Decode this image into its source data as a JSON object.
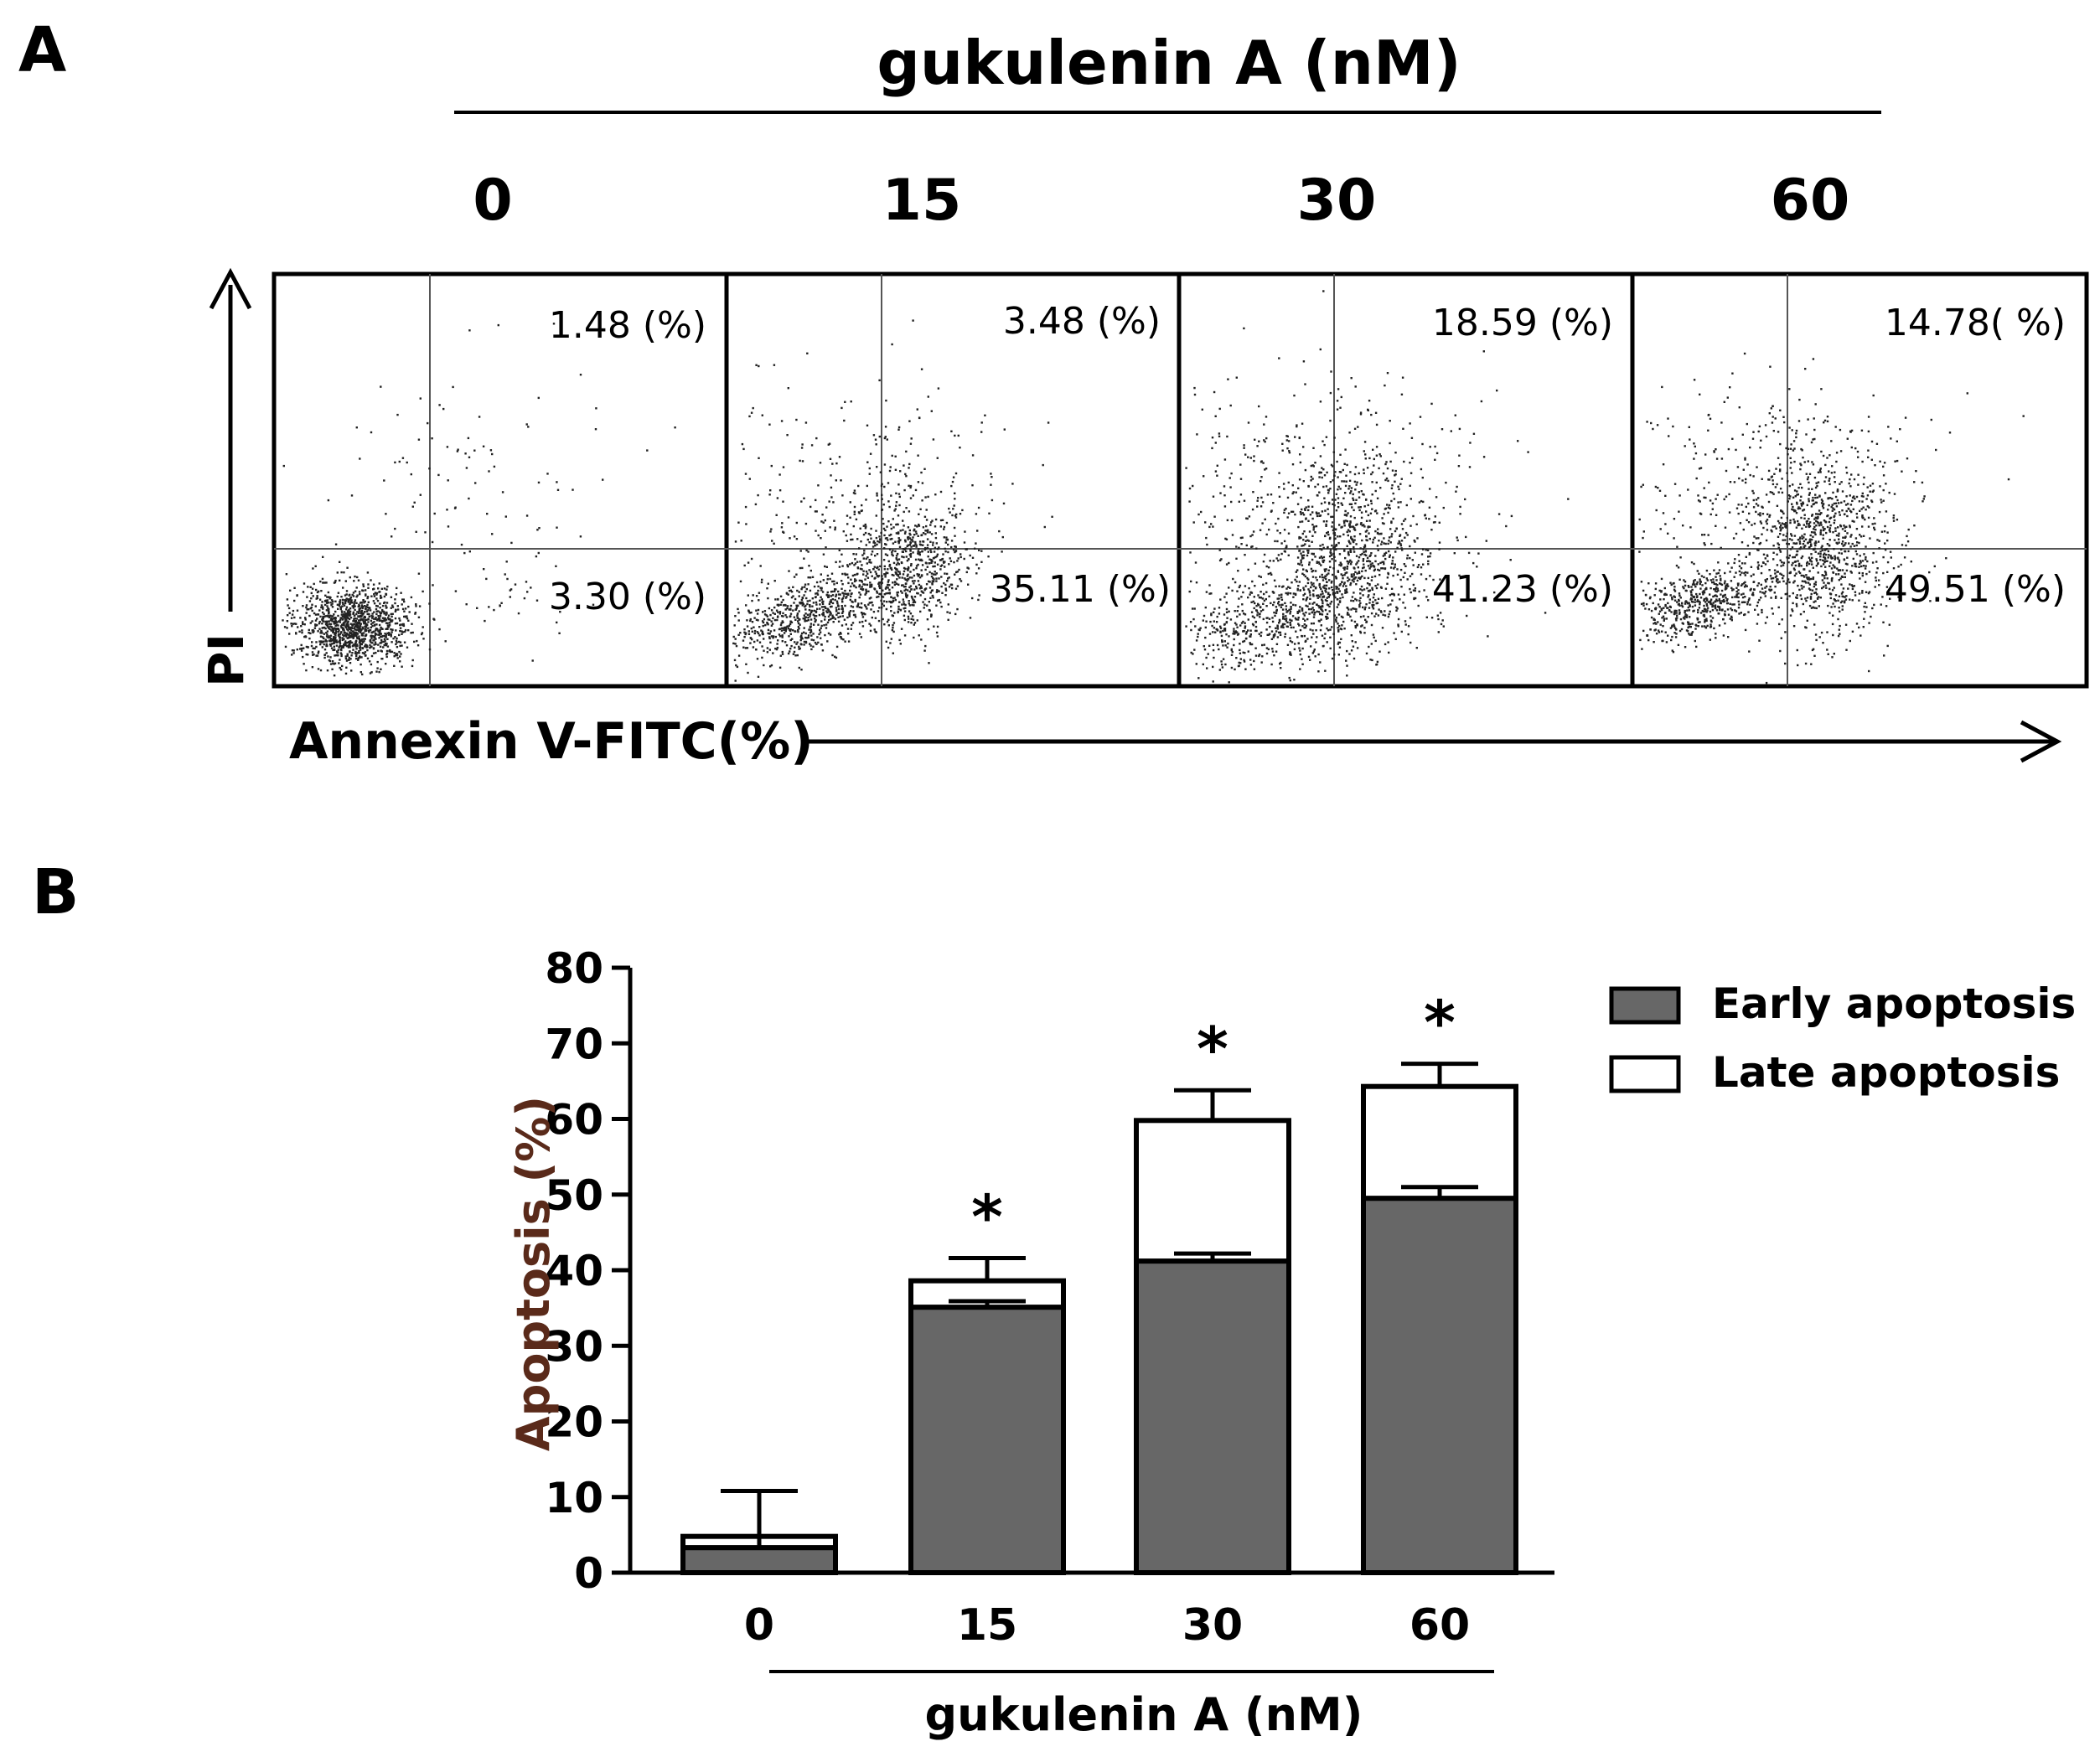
{
  "figure": {
    "panel_a_label": "A",
    "panel_b_label": "B"
  },
  "colors": {
    "early": "#676767",
    "late": "#ffffff",
    "axis": "#000000",
    "ylabel": "#5a2a1a",
    "dots": "#222222"
  },
  "chart_data": [
    {
      "type": "scatter",
      "title": "gukulenin A (nM)",
      "xlabel": "Annexin V-FITC(%)",
      "ylabel": "PI",
      "panels": [
        {
          "dose": "0",
          "upper_right": "1.48 (%)",
          "lower_right": "3.30 (%)"
        },
        {
          "dose": "15",
          "upper_right": "3.48 (%)",
          "lower_right": "35.11 (%)"
        },
        {
          "dose": "30",
          "upper_right": "18.59 (%)",
          "lower_right": "41.23 (%)"
        },
        {
          "dose": "60",
          "upper_right": "14.78( %)",
          "lower_right": "49.51 (%)"
        }
      ]
    },
    {
      "type": "bar",
      "stacked": true,
      "categories": [
        "0",
        "15",
        "30",
        "60"
      ],
      "series": [
        {
          "name": "Early apoptosis",
          "values": [
            3.3,
            35.1,
            41.2,
            49.5
          ],
          "errors": [
            1.5,
            0.8,
            1.0,
            1.5
          ]
        },
        {
          "name": "Late apoptosis",
          "values": [
            1.5,
            3.5,
            18.6,
            14.8
          ],
          "errors": [
            6.0,
            3.0,
            4.0,
            3.0
          ]
        }
      ],
      "significance": [
        "",
        "*",
        "*",
        "*"
      ],
      "xlabel": "gukulenin A (nM)",
      "ylabel": "Apoptosis (%)",
      "ylim": [
        0,
        80
      ],
      "yticks": [
        0,
        10,
        20,
        30,
        40,
        50,
        60,
        70,
        80
      ],
      "legend_position": "top-right"
    }
  ]
}
